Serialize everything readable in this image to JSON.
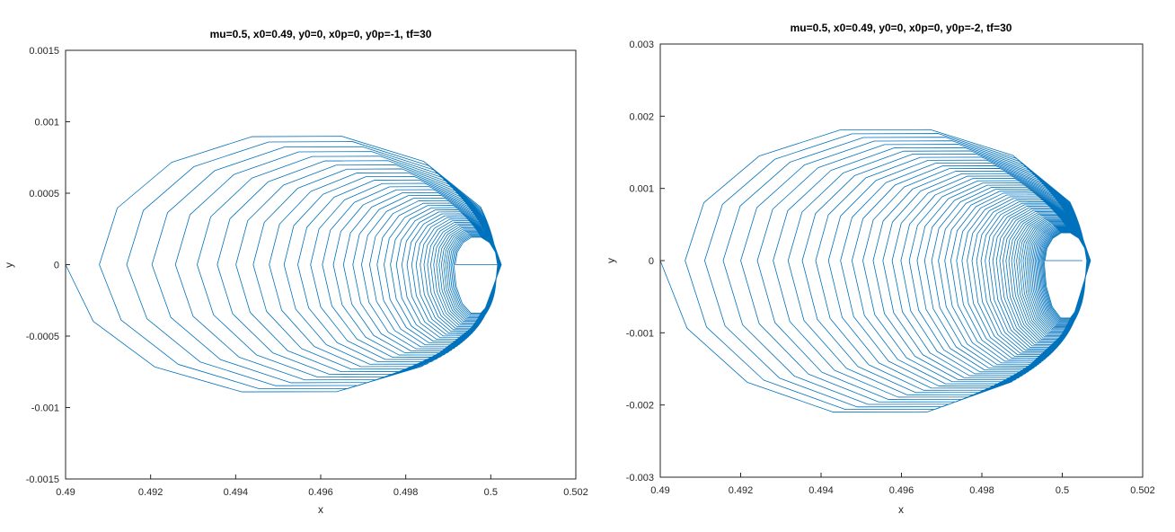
{
  "chart_data": [
    {
      "type": "line",
      "title": "mu=0.5, x0=0.49, y0=0, x0p=0, y0p=-1, tf=30",
      "xlabel": "x",
      "ylabel": "y",
      "xlim": [
        0.49,
        0.502
      ],
      "ylim": [
        -0.0015,
        0.0015
      ],
      "xticks": [
        0.49,
        0.492,
        0.494,
        0.496,
        0.498,
        0.5,
        0.502
      ],
      "xtick_labels": [
        "0.49",
        "0.492",
        "0.494",
        "0.496",
        "0.498",
        "0.5",
        "0.502"
      ],
      "yticks": [
        -0.0015,
        -0.001,
        -0.0005,
        0,
        0.0005,
        0.001,
        0.0015
      ],
      "ytick_labels": [
        "-0.0015",
        "-0.001",
        "-0.0005",
        "0",
        "0.0005",
        "0.001",
        "0.0015"
      ],
      "grid": false,
      "color": "#0072bd",
      "series": [
        {
          "trajectory": "spiral",
          "start": [
            0.49,
            0
          ],
          "end": [
            0.50015,
            0
          ],
          "x_min": 0.49,
          "x_max": 0.50015,
          "y_min": -0.001,
          "y_max": 0.00102,
          "loops": 42
        }
      ]
    },
    {
      "type": "line",
      "title": "mu=0.5, x0=0.49, y0=0, x0p=0, y0p=-2, tf=30",
      "xlabel": "x",
      "ylabel": "y",
      "xlim": [
        0.49,
        0.502
      ],
      "ylim": [
        -0.003,
        0.003
      ],
      "xticks": [
        0.49,
        0.492,
        0.494,
        0.496,
        0.498,
        0.5,
        0.502
      ],
      "xtick_labels": [
        "0.49",
        "0.492",
        "0.494",
        "0.496",
        "0.498",
        "0.5",
        "0.502"
      ],
      "yticks": [
        -0.003,
        -0.002,
        -0.001,
        0,
        0.001,
        0.002,
        0.003
      ],
      "ytick_labels": [
        "-0.003",
        "-0.002",
        "-0.001",
        "0",
        "0.001",
        "0.002",
        "0.003"
      ],
      "grid": false,
      "color": "#0072bd",
      "series": [
        {
          "trajectory": "spiral",
          "start": [
            0.49,
            0
          ],
          "end": [
            0.5005,
            0
          ],
          "x_min": 0.49,
          "x_max": 0.5006,
          "y_min": -0.002,
          "y_max": 0.0024,
          "loops": 60
        }
      ]
    }
  ]
}
